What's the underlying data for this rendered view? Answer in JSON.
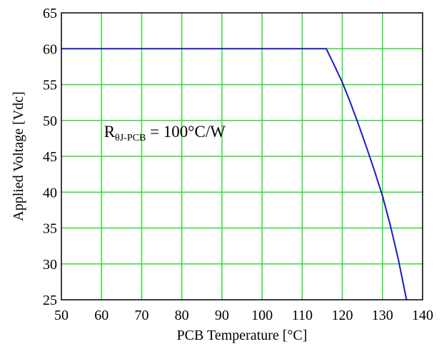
{
  "chart_data": {
    "type": "line",
    "title": "",
    "xlabel": "PCB Temperature [°C]",
    "ylabel": "Applied Voltage [Vdc]",
    "xlim": [
      50,
      140
    ],
    "ylim": [
      25,
      65
    ],
    "xticks": [
      50,
      60,
      70,
      80,
      90,
      100,
      110,
      120,
      130,
      140
    ],
    "yticks": [
      25,
      30,
      35,
      40,
      45,
      50,
      55,
      60,
      65
    ],
    "grid": true,
    "legend": "none",
    "series": [
      {
        "x": [
          50,
          116,
          118,
          120,
          122,
          124,
          126,
          128,
          130,
          132,
          134,
          136
        ],
        "y": [
          60,
          60,
          57.7,
          55.3,
          52.5,
          49.5,
          46.3,
          43,
          39.5,
          35.3,
          30.5,
          25
        ]
      }
    ],
    "annotation": {
      "main": "R",
      "subscript": "θJ-PCB",
      "suffix": " = 100°C/W",
      "x": 72,
      "y": 48.5
    },
    "colors": {
      "grid": "#33dd33",
      "line": "#1a1acc",
      "frame": "#000000"
    }
  }
}
